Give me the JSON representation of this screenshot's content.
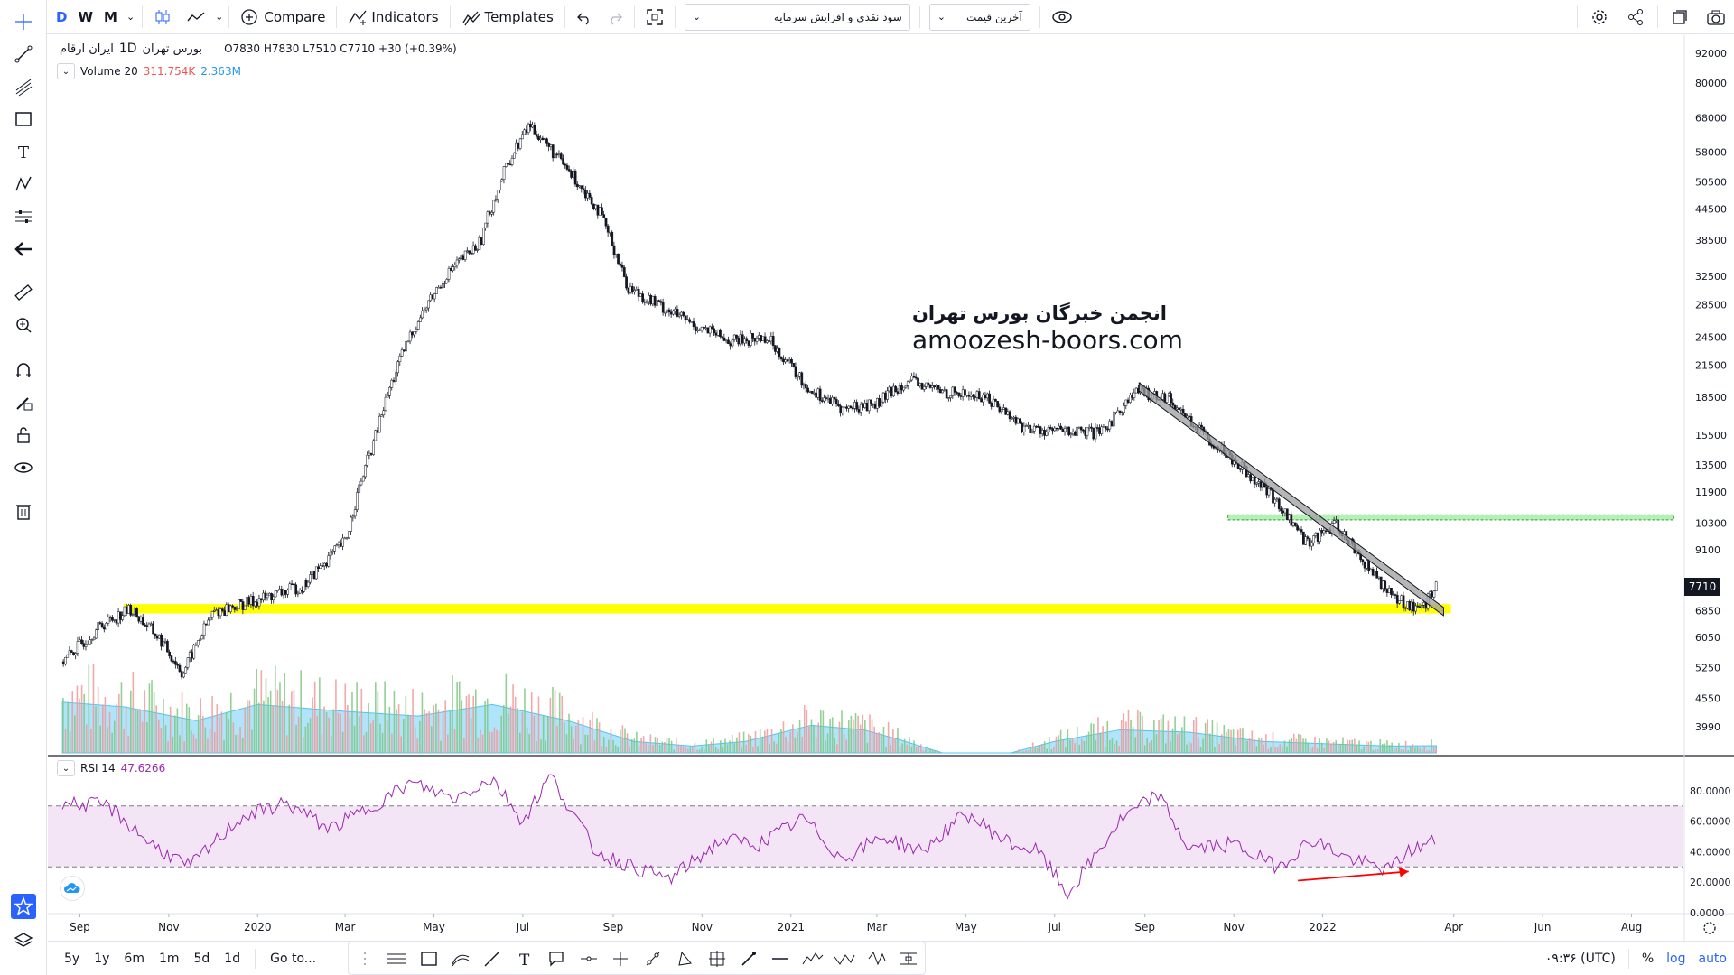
{
  "toolbar": {
    "intervals": [
      "D",
      "W",
      "M"
    ],
    "compare_label": "Compare",
    "indicators_label": "Indicators",
    "templates_label": "Templates",
    "select1_value": "سود نقدی و افزایش سرمایه",
    "select2_value": "آخرین قیمت"
  },
  "legend": {
    "symbol": "ایران ارقام",
    "interval": "1D",
    "exchange": "بورس تهران",
    "ohlc": "O7830 H7830 L7510 C7710 +30 (+0.39%)",
    "volume_label": "Volume 20",
    "volume_val1": "311.754K",
    "volume_val2": "2.363M",
    "rsi_label": "RSI 14",
    "rsi_value": "47.6266"
  },
  "watermark": {
    "line1": "انجمن خبرگان بورس تهران",
    "line2": "amoozesh-boors.com"
  },
  "last_price_tag": "7710",
  "bottom": {
    "ranges": [
      "5y",
      "1y",
      "6m",
      "1m",
      "5d",
      "1d"
    ],
    "goto_label": "Go to...",
    "clock": "۰۹:۳۶ (UTC)",
    "percent": "%",
    "log": "log",
    "auto": "auto"
  },
  "colors": {
    "up": "#131722",
    "support_band": "#ffff00",
    "resistance_band": "#90ee90",
    "rsi_line": "#9c27b0",
    "rsi_band": "#f3e5f5",
    "volume_area": "#4fc3f7",
    "arrow": "#ff0000"
  },
  "chart_data": {
    "type": "line",
    "price_axis_ticks": [
      92000,
      80000,
      68000,
      58000,
      50500,
      44500,
      38500,
      32500,
      28500,
      24500,
      21500,
      18500,
      15500,
      13500,
      11900,
      10300,
      9100,
      7710,
      6850,
      6050,
      5250,
      4550,
      3990
    ],
    "rsi_axis_ticks": [
      "80.0000",
      "60.0000",
      "40.0000",
      "20.0000",
      "0.0000"
    ],
    "time_axis_labels": [
      "Sep",
      "Nov",
      "2020",
      "Mar",
      "May",
      "Jul",
      "Sep",
      "Nov",
      "2021",
      "Mar",
      "May",
      "Jul",
      "Sep",
      "Nov",
      "2022",
      "Apr",
      "Jun",
      "Aug"
    ],
    "series": [
      {
        "x": [
          "2019-08-20",
          "2019-09-15",
          "2019-10-05",
          "2019-10-25",
          "2019-11-10",
          "2019-12-01",
          "2020-01-01",
          "2020-02-01",
          "2020-03-01",
          "2020-03-20",
          "2020-04-15",
          "2020-05-10",
          "2020-06-01",
          "2020-06-20",
          "2020-07-05",
          "2020-07-25",
          "2020-08-20",
          "2020-09-10",
          "2020-10-01",
          "2020-10-25",
          "2020-11-20",
          "2020-12-15",
          "2021-01-10",
          "2021-02-05",
          "2021-03-01",
          "2021-03-20",
          "2021-04-15",
          "2021-05-15",
          "2021-06-10",
          "2021-07-05",
          "2021-08-01",
          "2021-08-25",
          "2021-09-15",
          "2021-10-10",
          "2021-11-01",
          "2021-11-25",
          "2021-12-20",
          "2022-01-10",
          "2022-02-01",
          "2022-02-20",
          "2022-03-10",
          "2022-03-20"
        ],
        "values": [
          5400,
          6400,
          6900,
          6000,
          5100,
          6800,
          7200,
          7700,
          9500,
          15000,
          25000,
          33000,
          38000,
          55000,
          66000,
          56000,
          45000,
          31000,
          28500,
          26000,
          24000,
          24500,
          19500,
          17500,
          18000,
          20000,
          19000,
          18500,
          16000,
          15800,
          15600,
          19000,
          18600,
          15600,
          13800,
          11800,
          9400,
          10200,
          8300,
          7200,
          6900,
          7710
        ]
      }
    ],
    "volume_series": [
      {
        "name": "Volume 20",
        "x": [
          "2019-08-20",
          "2019-10-01",
          "2019-11-20",
          "2020-01-01",
          "2020-03-01",
          "2020-04-20",
          "2020-06-10",
          "2020-08-01",
          "2020-09-15",
          "2020-10-25",
          "2020-12-01",
          "2021-01-15",
          "2021-02-20",
          "2021-03-15",
          "2021-04-15",
          "2021-06-01",
          "2021-07-01",
          "2021-08-15",
          "2021-10-01",
          "2021-11-20",
          "2022-01-01",
          "2022-02-15",
          "2022-03-20"
        ],
        "values": [
          2200000,
          2000000,
          1400000,
          2100000,
          1800000,
          1600000,
          2100000,
          1400000,
          500000,
          300000,
          500000,
          1200000,
          1000000,
          600000,
          0,
          0,
          500000,
          1000000,
          900000,
          500000,
          400000,
          300000,
          311754
        ]
      }
    ],
    "rsi": {
      "x": [
        "2019-08-20",
        "2019-09-20",
        "2019-10-20",
        "2019-11-15",
        "2019-12-20",
        "2020-01-20",
        "2020-02-20",
        "2020-03-20",
        "2020-04-15",
        "2020-05-15",
        "2020-06-10",
        "2020-07-01",
        "2020-07-20",
        "2020-08-20",
        "2020-09-20",
        "2020-10-10",
        "2020-11-15",
        "2020-12-10",
        "2021-01-10",
        "2021-02-05",
        "2021-03-05",
        "2021-04-01",
        "2021-05-01",
        "2021-06-01",
        "2021-06-20",
        "2021-07-10",
        "2021-08-15",
        "2021-09-10",
        "2021-10-01",
        "2021-11-01",
        "2021-12-01",
        "2021-12-25",
        "2022-01-20",
        "2022-02-15",
        "2022-03-01",
        "2022-03-20"
      ],
      "values": [
        72,
        70,
        45,
        30,
        62,
        72,
        55,
        70,
        85,
        75,
        88,
        60,
        90,
        40,
        28,
        22,
        48,
        45,
        62,
        35,
        50,
        40,
        65,
        45,
        40,
        12,
        60,
        78,
        42,
        45,
        30,
        48,
        35,
        28,
        40,
        47.6
      ],
      "levels": [
        70,
        30
      ]
    },
    "support_band": [
      6760,
      7060
    ],
    "resistance_band": [
      10450,
      10700
    ],
    "trendline": {
      "x": [
        "2021-08-28",
        "2022-03-25"
      ],
      "values": [
        19800,
        6950
      ]
    },
    "rsi_divergence_arrow": {
      "x": [
        "2021-12-15",
        "2022-03-01"
      ],
      "values": [
        21,
        27
      ]
    }
  }
}
